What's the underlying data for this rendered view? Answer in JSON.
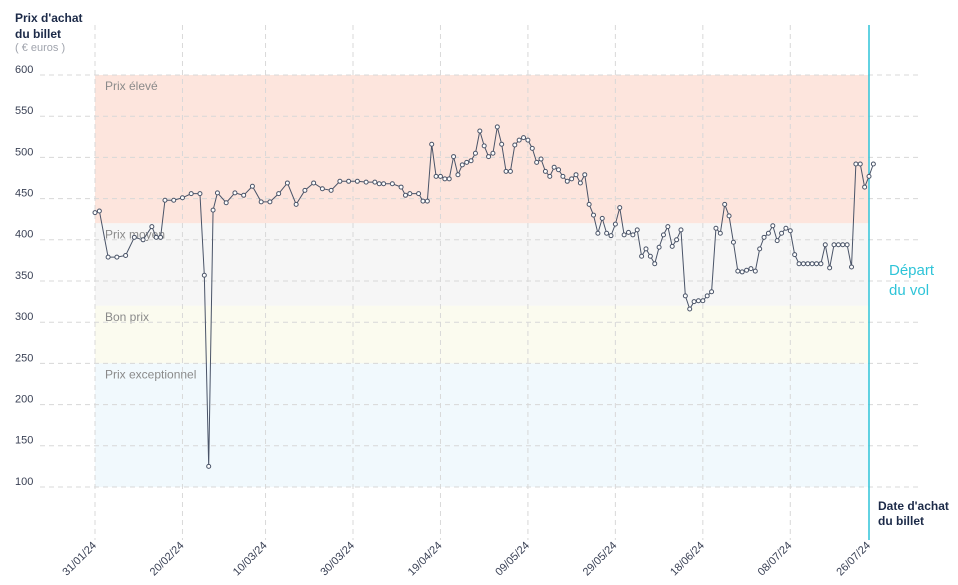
{
  "chart_data": {
    "type": "line",
    "y_title": [
      "Prix d'achat",
      "du billet"
    ],
    "y_subtitle": "( € euros )",
    "x_title": [
      "Date d'achat",
      "du billet"
    ],
    "ylim": [
      100,
      600
    ],
    "yticks": [
      100,
      150,
      200,
      250,
      300,
      350,
      400,
      450,
      500,
      550,
      600
    ],
    "xlim": [
      "2024-01-31",
      "2024-07-26"
    ],
    "xticks": [
      {
        "value": "2024-01-31",
        "label": "31/01/24"
      },
      {
        "value": "2024-02-20",
        "label": "20/02/24"
      },
      {
        "value": "2024-03-10",
        "label": "10/03/24"
      },
      {
        "value": "2024-03-30",
        "label": "30/03/24"
      },
      {
        "value": "2024-04-19",
        "label": "19/04/24"
      },
      {
        "value": "2024-05-09",
        "label": "09/05/24"
      },
      {
        "value": "2024-05-29",
        "label": "29/05/24"
      },
      {
        "value": "2024-06-18",
        "label": "18/06/24"
      },
      {
        "value": "2024-07-08",
        "label": "08/07/24"
      },
      {
        "value": "2024-07-26",
        "label": "26/07/24"
      }
    ],
    "grid": true,
    "bands": [
      {
        "name": "Prix élevé",
        "from": 420,
        "to": 600,
        "color": "#fde5dd"
      },
      {
        "name": "Prix moyen",
        "from": 320,
        "to": 420,
        "color": "#f6f6f6"
      },
      {
        "name": "Bon prix",
        "from": 250,
        "to": 320,
        "color": "#fbfbef"
      },
      {
        "name": "Prix exceptionnel",
        "from": 100,
        "to": 250,
        "color": "#f1f9fd"
      }
    ],
    "annotation": {
      "x": "2024-07-26",
      "text": [
        "Départ",
        "du vol"
      ],
      "color": "#2ec4d8"
    },
    "x": [
      "2024-01-31",
      "2024-02-01",
      "2024-02-03",
      "2024-02-05",
      "2024-02-07",
      "2024-02-09",
      "2024-02-11",
      "2024-02-13",
      "2024-02-14",
      "2024-02-15",
      "2024-02-16",
      "2024-02-18",
      "2024-02-20",
      "2024-02-22",
      "2024-02-24",
      "2024-02-25",
      "2024-02-26",
      "2024-02-27",
      "2024-02-28",
      "2024-03-01",
      "2024-03-03",
      "2024-03-05",
      "2024-03-07",
      "2024-03-09",
      "2024-03-11",
      "2024-03-13",
      "2024-03-15",
      "2024-03-17",
      "2024-03-19",
      "2024-03-21",
      "2024-03-23",
      "2024-03-25",
      "2024-03-27",
      "2024-03-29",
      "2024-03-31",
      "2024-04-02",
      "2024-04-04",
      "2024-04-05",
      "2024-04-06",
      "2024-04-08",
      "2024-04-10",
      "2024-04-11",
      "2024-04-12",
      "2024-04-14",
      "2024-04-15",
      "2024-04-16",
      "2024-04-17",
      "2024-04-18",
      "2024-04-19",
      "2024-04-20",
      "2024-04-21",
      "2024-04-22",
      "2024-04-23",
      "2024-04-24",
      "2024-04-25",
      "2024-04-26",
      "2024-04-27",
      "2024-04-28",
      "2024-04-29",
      "2024-04-30",
      "2024-05-01",
      "2024-05-02",
      "2024-05-03",
      "2024-05-04",
      "2024-05-05",
      "2024-05-06",
      "2024-05-07",
      "2024-05-08",
      "2024-05-09",
      "2024-05-10",
      "2024-05-11",
      "2024-05-12",
      "2024-05-13",
      "2024-05-14",
      "2024-05-15",
      "2024-05-16",
      "2024-05-17",
      "2024-05-18",
      "2024-05-19",
      "2024-05-20",
      "2024-05-21",
      "2024-05-22",
      "2024-05-23",
      "2024-05-24",
      "2024-05-25",
      "2024-05-26",
      "2024-05-27",
      "2024-05-28",
      "2024-05-29",
      "2024-05-30",
      "2024-05-31",
      "2024-06-01",
      "2024-06-02",
      "2024-06-03",
      "2024-06-04",
      "2024-06-05",
      "2024-06-06",
      "2024-06-07",
      "2024-06-08",
      "2024-06-09",
      "2024-06-10",
      "2024-06-11",
      "2024-06-12",
      "2024-06-13",
      "2024-06-14",
      "2024-06-15",
      "2024-06-16",
      "2024-06-17",
      "2024-06-18",
      "2024-06-19",
      "2024-06-20",
      "2024-06-21",
      "2024-06-22",
      "2024-06-23",
      "2024-06-24",
      "2024-06-25",
      "2024-06-26",
      "2024-06-27",
      "2024-06-28",
      "2024-06-29",
      "2024-06-30",
      "2024-07-01",
      "2024-07-02",
      "2024-07-03",
      "2024-07-04",
      "2024-07-05",
      "2024-07-06",
      "2024-07-07",
      "2024-07-08",
      "2024-07-09",
      "2024-07-10",
      "2024-07-11",
      "2024-07-12",
      "2024-07-13",
      "2024-07-14",
      "2024-07-15",
      "2024-07-16",
      "2024-07-17",
      "2024-07-18",
      "2024-07-19",
      "2024-07-20",
      "2024-07-21",
      "2024-07-22",
      "2024-07-23",
      "2024-07-24",
      "2024-07-25",
      "2024-07-26",
      "2024-07-27"
    ],
    "series": [
      {
        "color": "#4a5468",
        "values": [
          433,
          435,
          379,
          379,
          381,
          403,
          400,
          416,
          403,
          403,
          448,
          448,
          451,
          456,
          456,
          357,
          125,
          436,
          457,
          445,
          457,
          454,
          465,
          446,
          446,
          456,
          469,
          443,
          460,
          469,
          462,
          460,
          471,
          471,
          471,
          470,
          470,
          468,
          468,
          468,
          464,
          454,
          456,
          456,
          447,
          447,
          516,
          477,
          477,
          474,
          474,
          501,
          479,
          491,
          494,
          496,
          505,
          532,
          514,
          501,
          505,
          537,
          516,
          483,
          483,
          515,
          521,
          524,
          521,
          511,
          494,
          498,
          483,
          477,
          488,
          485,
          477,
          471,
          474,
          479,
          469,
          479,
          443,
          430,
          408,
          426,
          408,
          405,
          419,
          439,
          406,
          409,
          406,
          412,
          380,
          389,
          380,
          371,
          391,
          406,
          416,
          392,
          400,
          412,
          332,
          316,
          325,
          326,
          326,
          332,
          337,
          414,
          408,
          443,
          429,
          397,
          362,
          361,
          363,
          365,
          362,
          389,
          403,
          408,
          417,
          399,
          408,
          414,
          411,
          382,
          371,
          371,
          371,
          371,
          371,
          371,
          394,
          366,
          394,
          394,
          394,
          394,
          367,
          492,
          492,
          464,
          477,
          492
        ]
      }
    ]
  }
}
